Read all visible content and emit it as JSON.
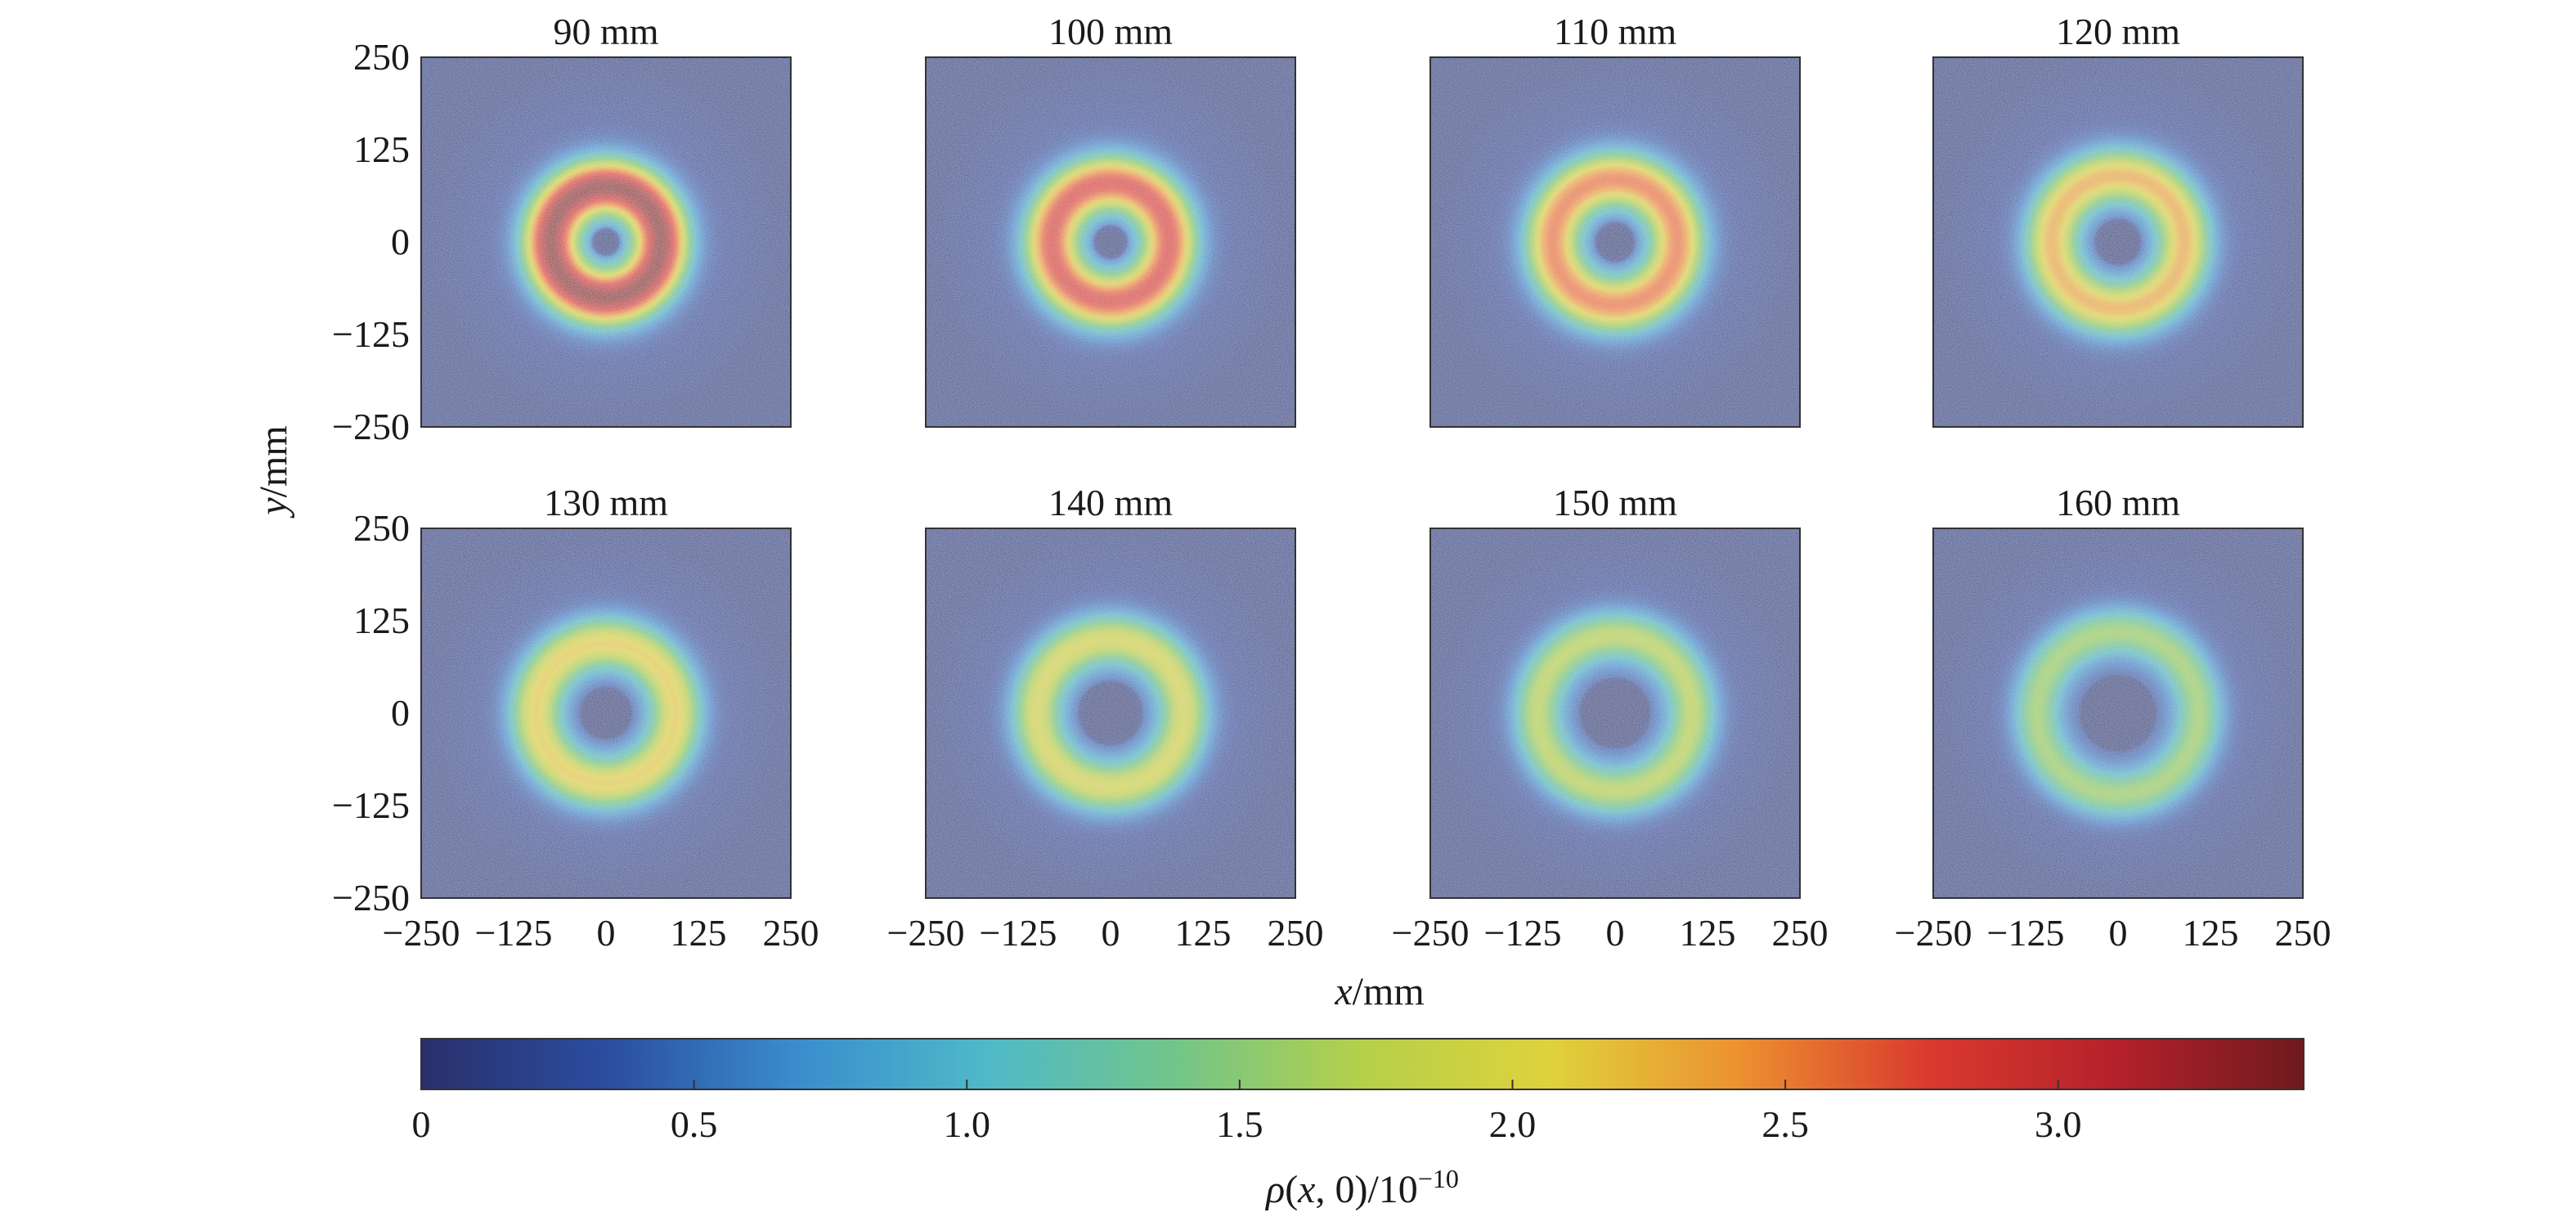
{
  "chart_data": {
    "type": "heatmap",
    "panels": [
      {
        "title": "90 mm",
        "ring_radius_mm": 75,
        "ring_width_mm": 38,
        "peak_rho": 2.85,
        "hole_radius_mm": 18
      },
      {
        "title": "100 mm",
        "ring_radius_mm": 80,
        "ring_width_mm": 38,
        "peak_rho": 2.35,
        "hole_radius_mm": 22
      },
      {
        "title": "110 mm",
        "ring_radius_mm": 85,
        "ring_width_mm": 38,
        "peak_rho": 2.1,
        "hole_radius_mm": 27
      },
      {
        "title": "120 mm",
        "ring_radius_mm": 90,
        "ring_width_mm": 37,
        "peak_rho": 1.85,
        "hole_radius_mm": 32
      },
      {
        "title": "130 mm",
        "ring_radius_mm": 95,
        "ring_width_mm": 36,
        "peak_rho": 1.7,
        "hole_radius_mm": 37
      },
      {
        "title": "140 mm",
        "ring_radius_mm": 100,
        "ring_width_mm": 35,
        "peak_rho": 1.55,
        "hole_radius_mm": 42
      },
      {
        "title": "150 mm",
        "ring_radius_mm": 105,
        "ring_width_mm": 34,
        "peak_rho": 1.35,
        "hole_radius_mm": 47
      },
      {
        "title": "160 mm",
        "ring_radius_mm": 110,
        "ring_width_mm": 33,
        "peak_rho": 1.2,
        "hole_radius_mm": 52
      }
    ],
    "xlabel": "x/mm",
    "ylabel": "y/mm",
    "xlim": [
      -250,
      250
    ],
    "ylim": [
      -250,
      250
    ],
    "xticks": [
      "−250",
      "−125",
      "0",
      "125",
      "250"
    ],
    "yticks": [
      "250",
      "125",
      "0",
      "−125",
      "−250"
    ],
    "colorbar": {
      "label_main": "ρ(x, 0)/10",
      "label_exp": "−10",
      "range": [
        0,
        3.45
      ],
      "ticks": [
        {
          "value": 0,
          "label": "0"
        },
        {
          "value": 0.5,
          "label": "0.5"
        },
        {
          "value": 1.0,
          "label": "1.0"
        },
        {
          "value": 1.5,
          "label": "1.5"
        },
        {
          "value": 2.0,
          "label": "2.0"
        },
        {
          "value": 2.5,
          "label": "2.5"
        },
        {
          "value": 3.0,
          "label": "3.0"
        }
      ],
      "colormap": [
        "#2a2f6b",
        "#2b4ea0",
        "#3a8dcc",
        "#4fb9c8",
        "#72c58a",
        "#b5d04a",
        "#dfd23c",
        "#ec9130",
        "#d93a2e",
        "#b5212b",
        "#6e1a1e"
      ]
    },
    "grid": false
  }
}
